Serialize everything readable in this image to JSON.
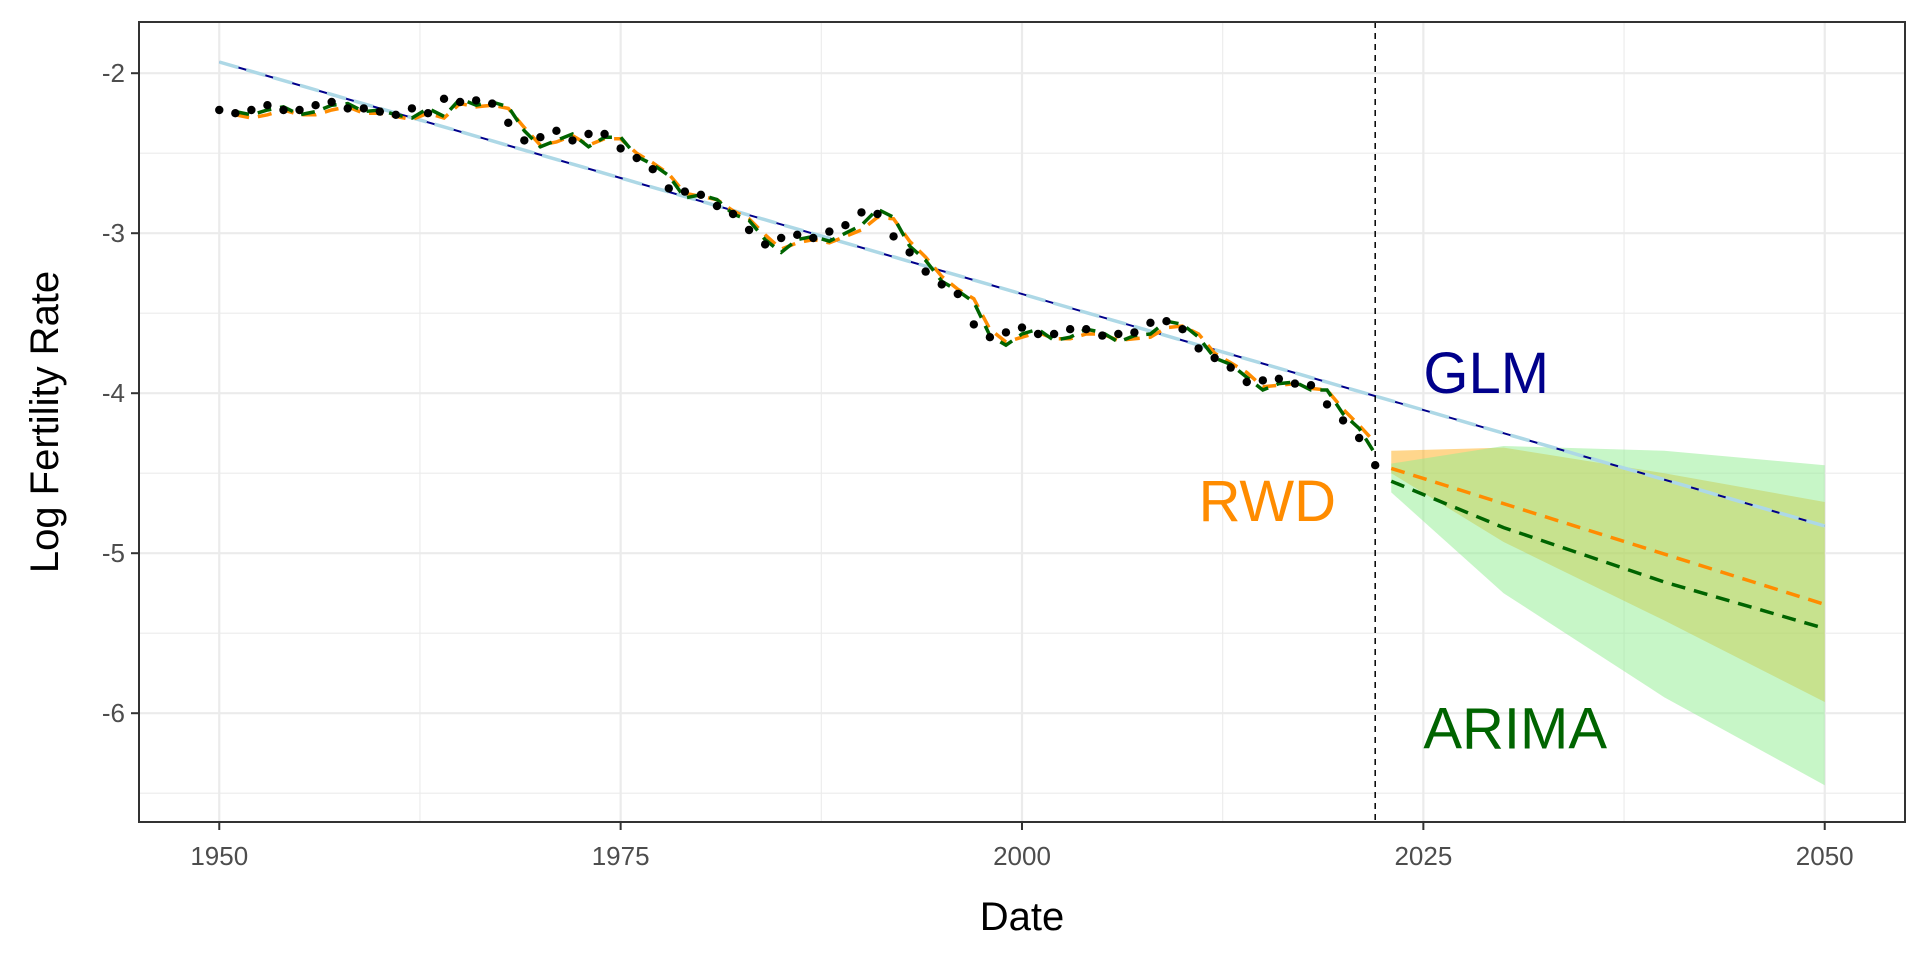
{
  "chart_data": {
    "type": "line",
    "xlabel": "Date",
    "ylabel": "Log Fertility Rate",
    "xlim": [
      1945,
      2055
    ],
    "ylim": [
      -6.68,
      -1.68
    ],
    "x_ticks": [
      1950,
      1975,
      2000,
      2025,
      2050
    ],
    "x_tick_labels": [
      "1950",
      "1975",
      "2000",
      "2025",
      "2050"
    ],
    "y_ticks": [
      -2,
      -3,
      -4,
      -5,
      -6
    ],
    "y_tick_labels": [
      "-2",
      "-3",
      "-4",
      "-5",
      "-6"
    ],
    "grid": true,
    "forecast_start": 2022,
    "colors": {
      "observed": "#000000",
      "glm": "#00008b",
      "glm_fit_dashed": "#add8e6",
      "rwd": "#ff8c00",
      "arima": "#006400",
      "rwd_band": "#ffa500",
      "arima_band": "#90ee90",
      "grid": "#ebebeb",
      "panel_border": "#333333",
      "tick_label": "#4d4d4d"
    },
    "annotations": [
      {
        "text": "GLM",
        "x": 2025,
        "y": -4.0,
        "color": "#00008b"
      },
      {
        "text": "RWD",
        "x": 2011,
        "y": -4.8,
        "color": "#ff8c00"
      },
      {
        "text": "ARIMA",
        "x": 2025,
        "y": -6.22,
        "color": "#006400"
      }
    ],
    "observed": {
      "x": [
        1950,
        1951,
        1952,
        1953,
        1954,
        1955,
        1956,
        1957,
        1958,
        1959,
        1960,
        1961,
        1962,
        1963,
        1964,
        1965,
        1966,
        1967,
        1968,
        1969,
        1970,
        1971,
        1972,
        1973,
        1974,
        1975,
        1976,
        1977,
        1978,
        1979,
        1980,
        1981,
        1982,
        1983,
        1984,
        1985,
        1986,
        1987,
        1988,
        1989,
        1990,
        1991,
        1992,
        1993,
        1994,
        1995,
        1996,
        1997,
        1998,
        1999,
        2000,
        2001,
        2002,
        2003,
        2004,
        2005,
        2006,
        2007,
        2008,
        2009,
        2010,
        2011,
        2012,
        2013,
        2014,
        2015,
        2016,
        2017,
        2018,
        2019,
        2020,
        2021,
        2022
      ],
      "y": [
        -2.23,
        -2.25,
        -2.23,
        -2.2,
        -2.23,
        -2.23,
        -2.2,
        -2.18,
        -2.22,
        -2.22,
        -2.24,
        -2.26,
        -2.22,
        -2.25,
        -2.16,
        -2.18,
        -2.17,
        -2.19,
        -2.31,
        -2.42,
        -2.4,
        -2.36,
        -2.42,
        -2.38,
        -2.38,
        -2.47,
        -2.53,
        -2.6,
        -2.72,
        -2.74,
        -2.76,
        -2.83,
        -2.88,
        -2.98,
        -3.07,
        -3.03,
        -3.01,
        -3.03,
        -2.99,
        -2.95,
        -2.87,
        -2.88,
        -3.02,
        -3.12,
        -3.24,
        -3.32,
        -3.38,
        -3.57,
        -3.65,
        -3.62,
        -3.59,
        -3.63,
        -3.63,
        -3.6,
        -3.6,
        -3.64,
        -3.63,
        -3.62,
        -3.56,
        -3.55,
        -3.6,
        -3.72,
        -3.78,
        -3.84,
        -3.93,
        -3.92,
        -3.91,
        -3.94,
        -3.95,
        -4.07,
        -4.17,
        -4.28,
        -4.45
      ]
    },
    "series": [
      {
        "name": "GLM",
        "x": [
          1950,
          2050
        ],
        "y": [
          -1.93,
          -4.83
        ]
      },
      {
        "name": "RWD",
        "x": [
          1951,
          1952,
          1953,
          1954,
          1955,
          1956,
          1957,
          1958,
          1959,
          1960,
          1961,
          1962,
          1963,
          1964,
          1965,
          1966,
          1967,
          1968,
          1969,
          1970,
          1971,
          1972,
          1973,
          1974,
          1975,
          1976,
          1977,
          1978,
          1979,
          1980,
          1981,
          1982,
          1983,
          1984,
          1985,
          1986,
          1987,
          1988,
          1989,
          1990,
          1991,
          1992,
          1993,
          1994,
          1995,
          1996,
          1997,
          1998,
          1999,
          2000,
          2001,
          2002,
          2003,
          2004,
          2005,
          2006,
          2007,
          2008,
          2009,
          2010,
          2011,
          2012,
          2013,
          2014,
          2015,
          2016,
          2017,
          2018,
          2019,
          2020,
          2021,
          2022
        ],
        "y": [
          -2.26,
          -2.28,
          -2.26,
          -2.23,
          -2.26,
          -2.26,
          -2.23,
          -2.21,
          -2.25,
          -2.25,
          -2.27,
          -2.29,
          -2.25,
          -2.28,
          -2.19,
          -2.21,
          -2.2,
          -2.22,
          -2.34,
          -2.45,
          -2.43,
          -2.39,
          -2.45,
          -2.41,
          -2.41,
          -2.5,
          -2.56,
          -2.63,
          -2.75,
          -2.77,
          -2.79,
          -2.86,
          -2.91,
          -3.01,
          -3.1,
          -3.06,
          -3.04,
          -3.06,
          -3.02,
          -2.98,
          -2.9,
          -2.91,
          -3.05,
          -3.15,
          -3.27,
          -3.35,
          -3.41,
          -3.6,
          -3.68,
          -3.65,
          -3.62,
          -3.66,
          -3.66,
          -3.63,
          -3.63,
          -3.67,
          -3.66,
          -3.65,
          -3.59,
          -3.58,
          -3.63,
          -3.75,
          -3.81,
          -3.87,
          -3.96,
          -3.95,
          -3.94,
          -3.97,
          -3.98,
          -4.1,
          -4.2,
          -4.31
        ]
      },
      {
        "name": "ARIMA",
        "x": [
          1951,
          1952,
          1953,
          1954,
          1955,
          1956,
          1957,
          1958,
          1959,
          1960,
          1961,
          1962,
          1963,
          1964,
          1965,
          1966,
          1967,
          1968,
          1969,
          1970,
          1971,
          1972,
          1973,
          1974,
          1975,
          1976,
          1977,
          1978,
          1979,
          1980,
          1981,
          1982,
          1983,
          1984,
          1985,
          1986,
          1987,
          1988,
          1989,
          1990,
          1991,
          1992,
          1993,
          1994,
          1995,
          1996,
          1997,
          1998,
          1999,
          2000,
          2001,
          2002,
          2003,
          2004,
          2005,
          2006,
          2007,
          2008,
          2009,
          2010,
          2011,
          2012,
          2013,
          2014,
          2015,
          2016,
          2017,
          2018,
          2019,
          2020,
          2021,
          2022
        ],
        "y": [
          -2.24,
          -2.26,
          -2.23,
          -2.21,
          -2.26,
          -2.24,
          -2.2,
          -2.19,
          -2.24,
          -2.23,
          -2.26,
          -2.28,
          -2.22,
          -2.27,
          -2.16,
          -2.2,
          -2.18,
          -2.21,
          -2.36,
          -2.46,
          -2.42,
          -2.38,
          -2.46,
          -2.4,
          -2.4,
          -2.52,
          -2.57,
          -2.64,
          -2.78,
          -2.76,
          -2.79,
          -2.88,
          -2.92,
          -3.04,
          -3.12,
          -3.04,
          -3.02,
          -3.05,
          -3.0,
          -2.95,
          -2.85,
          -2.9,
          -3.08,
          -3.17,
          -3.3,
          -3.36,
          -3.43,
          -3.64,
          -3.7,
          -3.63,
          -3.6,
          -3.67,
          -3.65,
          -3.6,
          -3.62,
          -3.68,
          -3.64,
          -3.63,
          -3.55,
          -3.57,
          -3.65,
          -3.78,
          -3.82,
          -3.9,
          -3.98,
          -3.94,
          -3.93,
          -3.98,
          -3.98,
          -4.13,
          -4.22,
          -4.38
        ]
      },
      {
        "name": "RWD forecast",
        "x": [
          2023,
          2050
        ],
        "y": [
          -4.47,
          -5.32
        ]
      },
      {
        "name": "ARIMA forecast",
        "x": [
          2023,
          2030,
          2040,
          2050
        ],
        "y": [
          -4.55,
          -4.84,
          -5.18,
          -5.47
        ]
      }
    ],
    "bands": [
      {
        "name": "RWD interval",
        "x": [
          2023,
          2030,
          2040,
          2050
        ],
        "upper": [
          -4.36,
          -4.34,
          -4.5,
          -4.68
        ],
        "lower": [
          -4.5,
          -4.93,
          -5.42,
          -5.93
        ]
      },
      {
        "name": "ARIMA interval",
        "x": [
          2023,
          2030,
          2040,
          2050
        ],
        "upper": [
          -4.44,
          -4.33,
          -4.36,
          -4.45
        ],
        "lower": [
          -4.62,
          -5.25,
          -5.9,
          -6.45
        ]
      }
    ]
  }
}
